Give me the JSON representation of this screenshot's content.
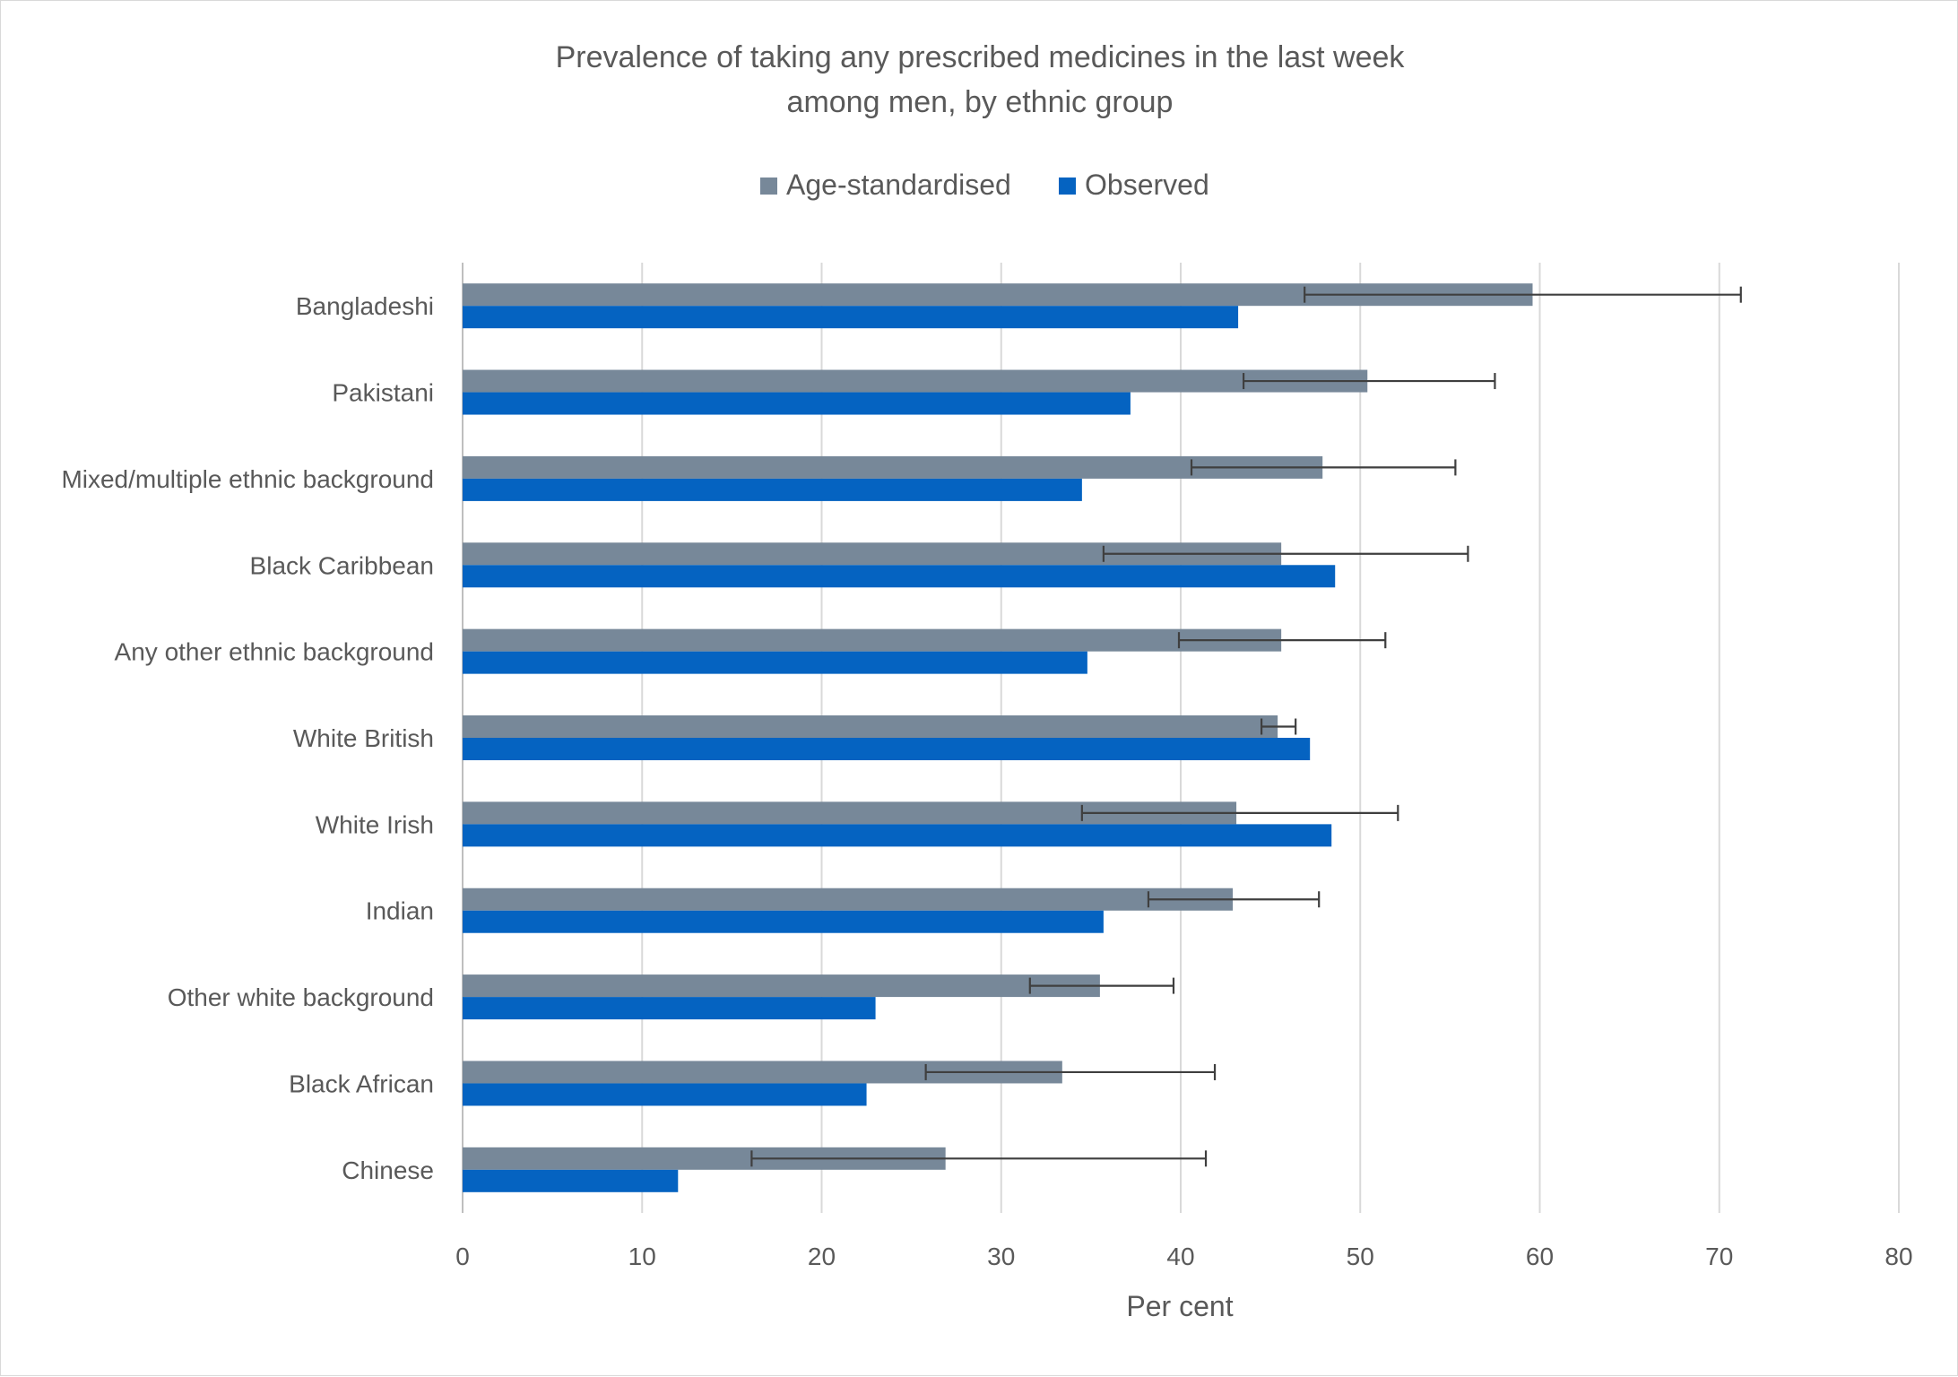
{
  "chart_data": {
    "type": "bar",
    "orientation": "horizontal",
    "title_lines": [
      "Prevalence of taking any prescribed medicines in the last week",
      "among men, by ethnic group"
    ],
    "xlabel": "Per cent",
    "xlim": [
      0,
      80
    ],
    "xticks": [
      0,
      10,
      20,
      30,
      40,
      50,
      60,
      70,
      80
    ],
    "grid": "vertical",
    "legend_position": "top",
    "categories": [
      "Bangladeshi",
      "Pakistani",
      "Mixed/multiple ethnic background",
      "Black Caribbean",
      "Any other ethnic background",
      "White British",
      "White Irish",
      "Indian",
      "Other white background",
      "Black African",
      "Chinese"
    ],
    "series": [
      {
        "name": "Age-standardised",
        "color": "#778899",
        "values": [
          59.6,
          50.4,
          47.9,
          45.6,
          45.6,
          45.4,
          43.1,
          42.9,
          35.5,
          33.4,
          26.9
        ],
        "error_low": [
          46.9,
          43.5,
          40.6,
          35.7,
          39.9,
          44.5,
          34.5,
          38.2,
          31.6,
          25.8,
          16.1
        ],
        "error_high": [
          71.2,
          57.5,
          55.3,
          56.0,
          51.4,
          46.4,
          52.1,
          47.7,
          39.6,
          41.9,
          41.4
        ]
      },
      {
        "name": "Observed",
        "color": "#0563C1",
        "values": [
          43.2,
          37.2,
          34.5,
          48.6,
          34.8,
          47.2,
          48.4,
          35.7,
          23.0,
          22.5,
          12.0
        ]
      }
    ]
  }
}
